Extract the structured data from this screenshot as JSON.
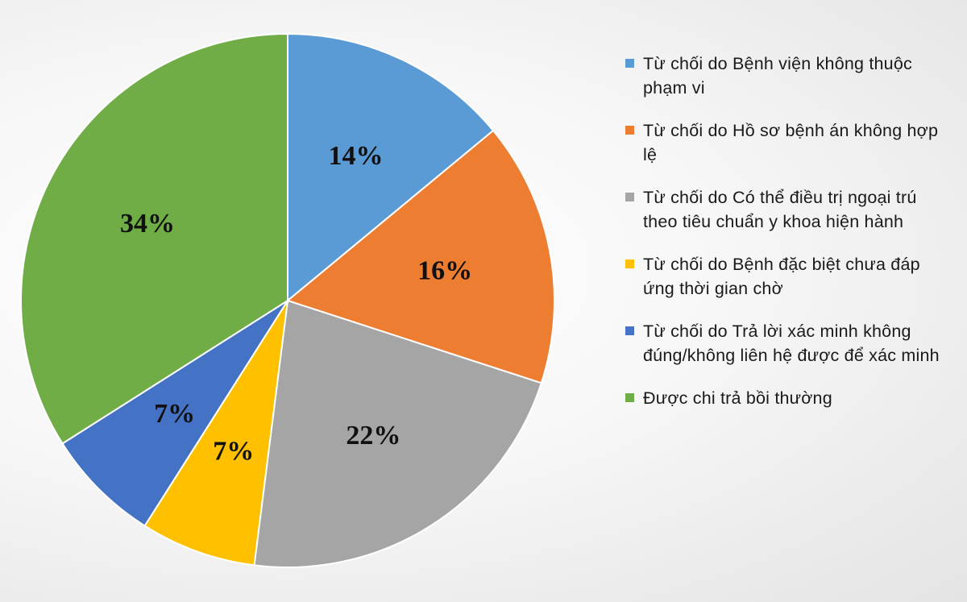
{
  "chart_data": {
    "type": "pie",
    "start_angle_deg": 0,
    "direction": "clockwise",
    "labels_format": "percent",
    "legend_position": "right",
    "slices": [
      {
        "name": "Từ chối do Bệnh viện không thuộc phạm vi",
        "value": 14,
        "label": "14%",
        "color": "#5B9BD5"
      },
      {
        "name": "Từ chối do Hồ sơ bệnh án không hợp lệ",
        "value": 16,
        "label": "16%",
        "color": "#ED7D31"
      },
      {
        "name": "Từ chối do Có thể điều trị ngoại trú theo tiêu chuẩn y khoa hiện hành",
        "value": 22,
        "label": "22%",
        "color": "#A5A5A5"
      },
      {
        "name": "Từ chối do Bệnh đặc biệt chưa đáp ứng thời gian chờ",
        "value": 7,
        "label": "7%",
        "color": "#FFC000"
      },
      {
        "name": "Từ chối do Trả lời xác minh không đúng/không liên hệ được để xác minh",
        "value": 7,
        "label": "7%",
        "color": "#4472C4"
      },
      {
        "name": "Được chi trả bồi thường",
        "value": 34,
        "label": "34%",
        "color": "#70AD47"
      }
    ]
  }
}
